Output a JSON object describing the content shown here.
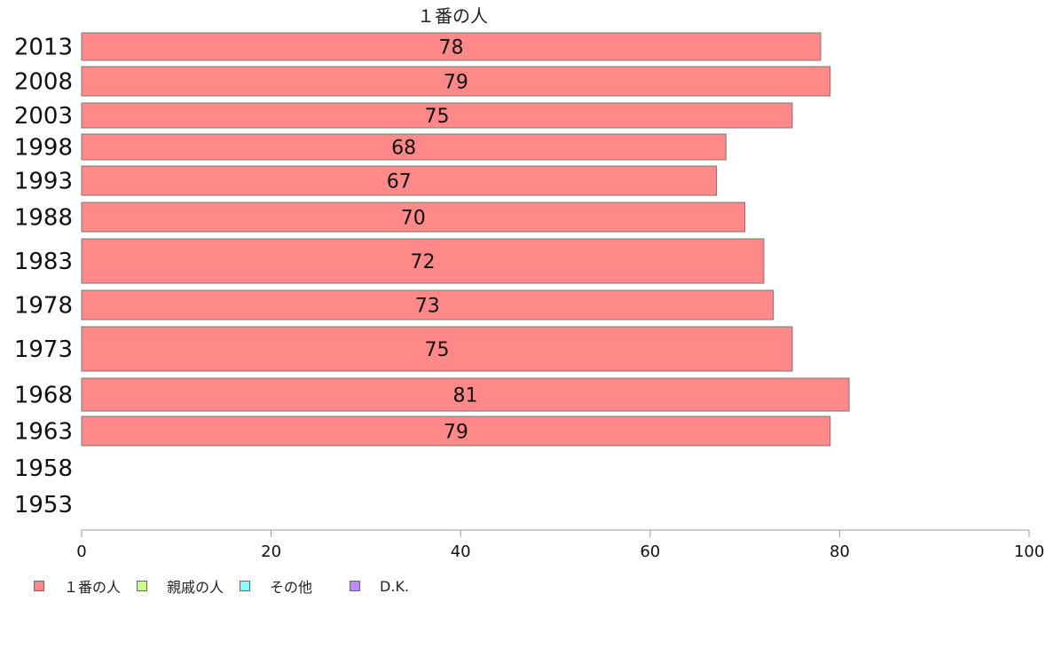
{
  "chart_data": {
    "type": "bar",
    "orientation": "horizontal",
    "title": "１番の人",
    "categories": [
      "2013",
      "2008",
      "2003",
      "1998",
      "1993",
      "1988",
      "1983",
      "1978",
      "1973",
      "1968",
      "1963",
      "1958",
      "1953"
    ],
    "series": [
      {
        "name": "１番の人",
        "color": "#ff8888",
        "values": [
          78,
          79,
          75,
          68,
          67,
          70,
          72,
          73,
          75,
          81,
          79,
          null,
          null
        ]
      }
    ],
    "xlim": [
      0,
      100
    ],
    "xticks": [
      0,
      20,
      40,
      60,
      80,
      100
    ],
    "legend_position": "bottom-left",
    "grid": false
  },
  "legend": [
    {
      "label": "１番の人",
      "color": "#ff8888"
    },
    {
      "label": "親戚の人",
      "color": "#c8ff88"
    },
    {
      "label": "その他",
      "color": "#88ffff"
    },
    {
      "label": "D.K.",
      "color": "#bb88ff"
    }
  ]
}
